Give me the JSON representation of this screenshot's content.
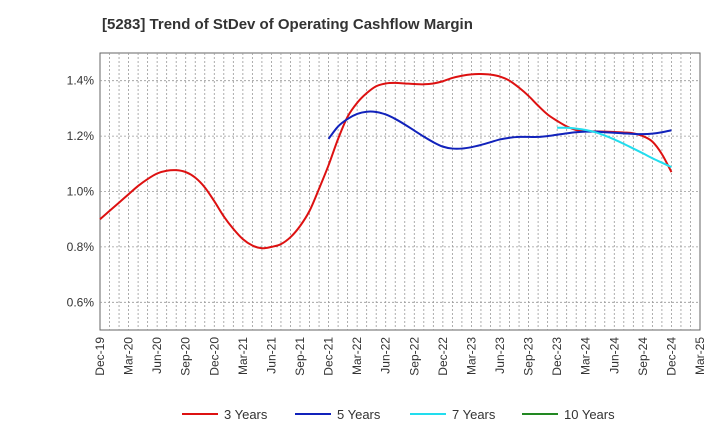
{
  "chart_data": {
    "type": "line",
    "title": "[5283]  Trend of StDev of Operating Cashflow Margin",
    "xlabel": "",
    "ylabel": "",
    "x_tick_labels": [
      "Dec-19",
      "Mar-20",
      "Jun-20",
      "Sep-20",
      "Dec-20",
      "Mar-21",
      "Jun-21",
      "Sep-21",
      "Dec-21",
      "Mar-22",
      "Jun-22",
      "Sep-22",
      "Dec-22",
      "Mar-23",
      "Jun-23",
      "Sep-23",
      "Dec-23",
      "Mar-24",
      "Jun-24",
      "Sep-24",
      "Dec-24",
      "Mar-25"
    ],
    "y_tick_labels": [
      "0.6%",
      "0.8%",
      "1.0%",
      "1.2%",
      "1.4%"
    ],
    "y_ticks": [
      0.6,
      0.8,
      1.0,
      1.2,
      1.4
    ],
    "ylim": [
      0.5,
      1.5
    ],
    "grid": true,
    "legend_position": "bottom",
    "series": [
      {
        "name": "3 Years",
        "color": "#dd1111",
        "x": [
          "2019-12",
          "2020-01",
          "2020-02",
          "2020-03",
          "2020-04",
          "2020-05",
          "2020-06",
          "2020-07",
          "2020-08",
          "2020-09",
          "2020-10",
          "2020-11",
          "2020-12",
          "2021-01",
          "2021-02",
          "2021-03",
          "2021-04",
          "2021-05",
          "2021-06",
          "2021-07",
          "2021-08",
          "2021-09",
          "2021-10",
          "2021-11",
          "2021-12",
          "2022-01",
          "2022-02",
          "2022-03",
          "2022-04",
          "2022-05",
          "2022-06",
          "2022-07",
          "2022-08",
          "2022-09",
          "2022-10",
          "2022-11",
          "2022-12",
          "2023-01",
          "2023-02",
          "2023-03",
          "2023-04",
          "2023-05",
          "2023-06",
          "2023-07",
          "2023-08",
          "2023-09",
          "2023-10",
          "2023-11",
          "2023-12",
          "2024-01",
          "2024-02",
          "2024-03",
          "2024-04",
          "2024-05",
          "2024-06",
          "2024-07",
          "2024-08",
          "2024-09",
          "2024-10",
          "2024-11",
          "2024-12"
        ],
        "values": [
          0.9,
          0.93,
          0.96,
          0.99,
          1.02,
          1.045,
          1.065,
          1.075,
          1.077,
          1.07,
          1.05,
          1.015,
          0.965,
          0.91,
          0.865,
          0.828,
          0.805,
          0.795,
          0.8,
          0.81,
          0.835,
          0.875,
          0.93,
          1.01,
          1.095,
          1.19,
          1.27,
          1.32,
          1.355,
          1.38,
          1.39,
          1.392,
          1.39,
          1.388,
          1.387,
          1.39,
          1.398,
          1.41,
          1.418,
          1.423,
          1.424,
          1.422,
          1.415,
          1.4,
          1.375,
          1.345,
          1.31,
          1.278,
          1.255,
          1.235,
          1.222,
          1.218,
          1.217,
          1.216,
          1.215,
          1.213,
          1.21,
          1.2,
          1.18,
          1.135,
          1.07
        ]
      },
      {
        "name": "5 Years",
        "color": "#1122bb",
        "x": [
          "2021-12",
          "2022-01",
          "2022-02",
          "2022-03",
          "2022-04",
          "2022-05",
          "2022-06",
          "2022-07",
          "2022-08",
          "2022-09",
          "2022-10",
          "2022-11",
          "2022-12",
          "2023-01",
          "2023-02",
          "2023-03",
          "2023-04",
          "2023-05",
          "2023-06",
          "2023-07",
          "2023-08",
          "2023-09",
          "2023-10",
          "2023-11",
          "2023-12",
          "2024-01",
          "2024-02",
          "2024-03",
          "2024-04",
          "2024-05",
          "2024-06",
          "2024-07",
          "2024-08",
          "2024-09",
          "2024-10",
          "2024-11",
          "2024-12"
        ],
        "values": [
          1.19,
          1.235,
          1.262,
          1.28,
          1.288,
          1.287,
          1.278,
          1.262,
          1.242,
          1.22,
          1.198,
          1.178,
          1.162,
          1.155,
          1.155,
          1.16,
          1.168,
          1.178,
          1.188,
          1.194,
          1.197,
          1.197,
          1.197,
          1.2,
          1.205,
          1.21,
          1.214,
          1.216,
          1.216,
          1.214,
          1.212,
          1.21,
          1.208,
          1.207,
          1.209,
          1.214,
          1.221
        ]
      },
      {
        "name": "7 Years",
        "color": "#22ddee",
        "x": [
          "2023-12",
          "2024-01",
          "2024-02",
          "2024-03",
          "2024-04",
          "2024-05",
          "2024-06",
          "2024-07",
          "2024-08",
          "2024-09",
          "2024-10",
          "2024-11",
          "2024-12"
        ],
        "values": [
          1.23,
          1.23,
          1.227,
          1.222,
          1.214,
          1.202,
          1.188,
          1.172,
          1.155,
          1.138,
          1.12,
          1.104,
          1.088
        ]
      },
      {
        "name": "10 Years",
        "color": "#228822",
        "x": [],
        "values": []
      }
    ]
  }
}
